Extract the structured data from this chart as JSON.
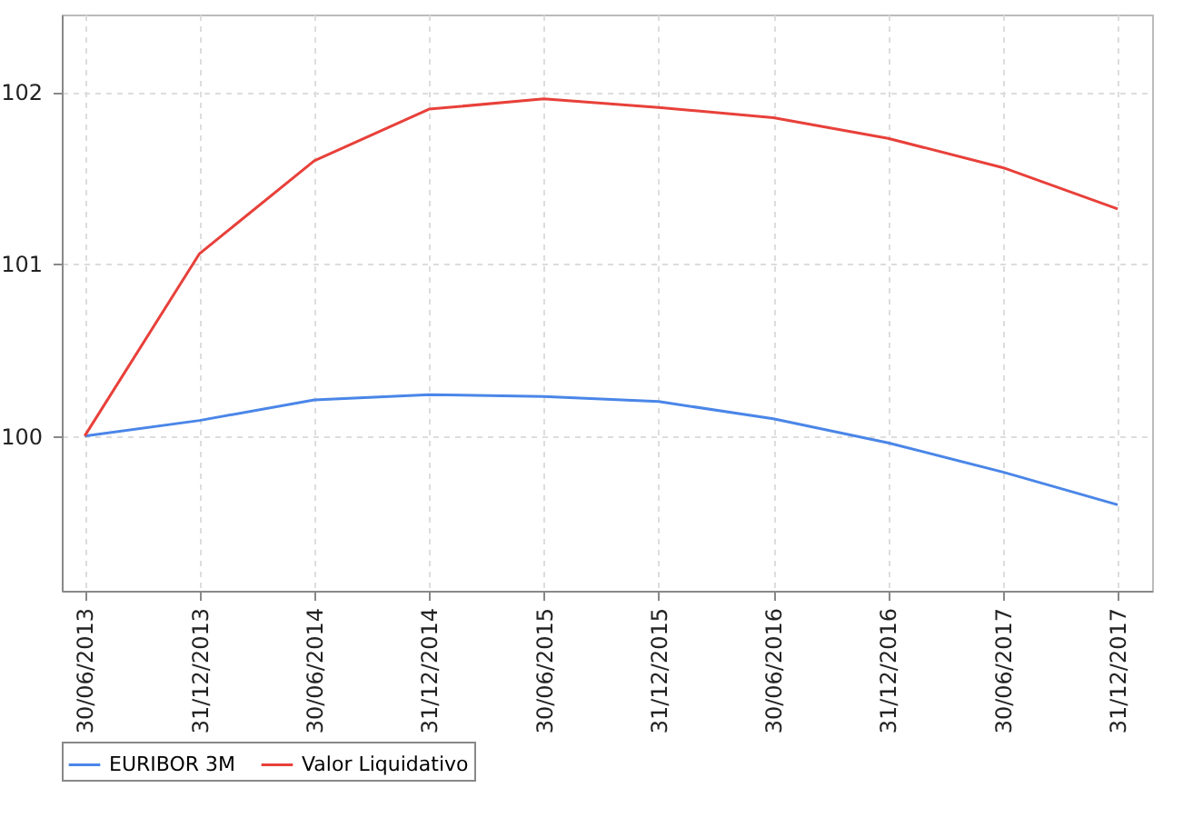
{
  "chart_data": {
    "type": "line",
    "categories": [
      "30/06/2013",
      "31/12/2013",
      "30/06/2014",
      "31/12/2014",
      "30/06/2015",
      "31/12/2015",
      "30/06/2016",
      "31/12/2016",
      "30/06/2017",
      "31/12/2017"
    ],
    "series": [
      {
        "name": "EURIBOR 3M",
        "color": "#4a86e8",
        "values": [
          100,
          100.09,
          100.21,
          100.24,
          100.23,
          100.2,
          100.1,
          99.96,
          99.79,
          99.6
        ]
      },
      {
        "name": "Valor Liquidativo",
        "color": "#e8403a",
        "values": [
          100,
          101.06,
          101.6,
          101.9,
          101.96,
          101.91,
          101.85,
          101.73,
          101.56,
          101.32
        ]
      }
    ],
    "ylim": [
      99.1,
      102.45
    ],
    "yticks": [
      100,
      101,
      102
    ],
    "grid": true,
    "legend": "bottom",
    "line_style": "solid",
    "marker": "none"
  }
}
